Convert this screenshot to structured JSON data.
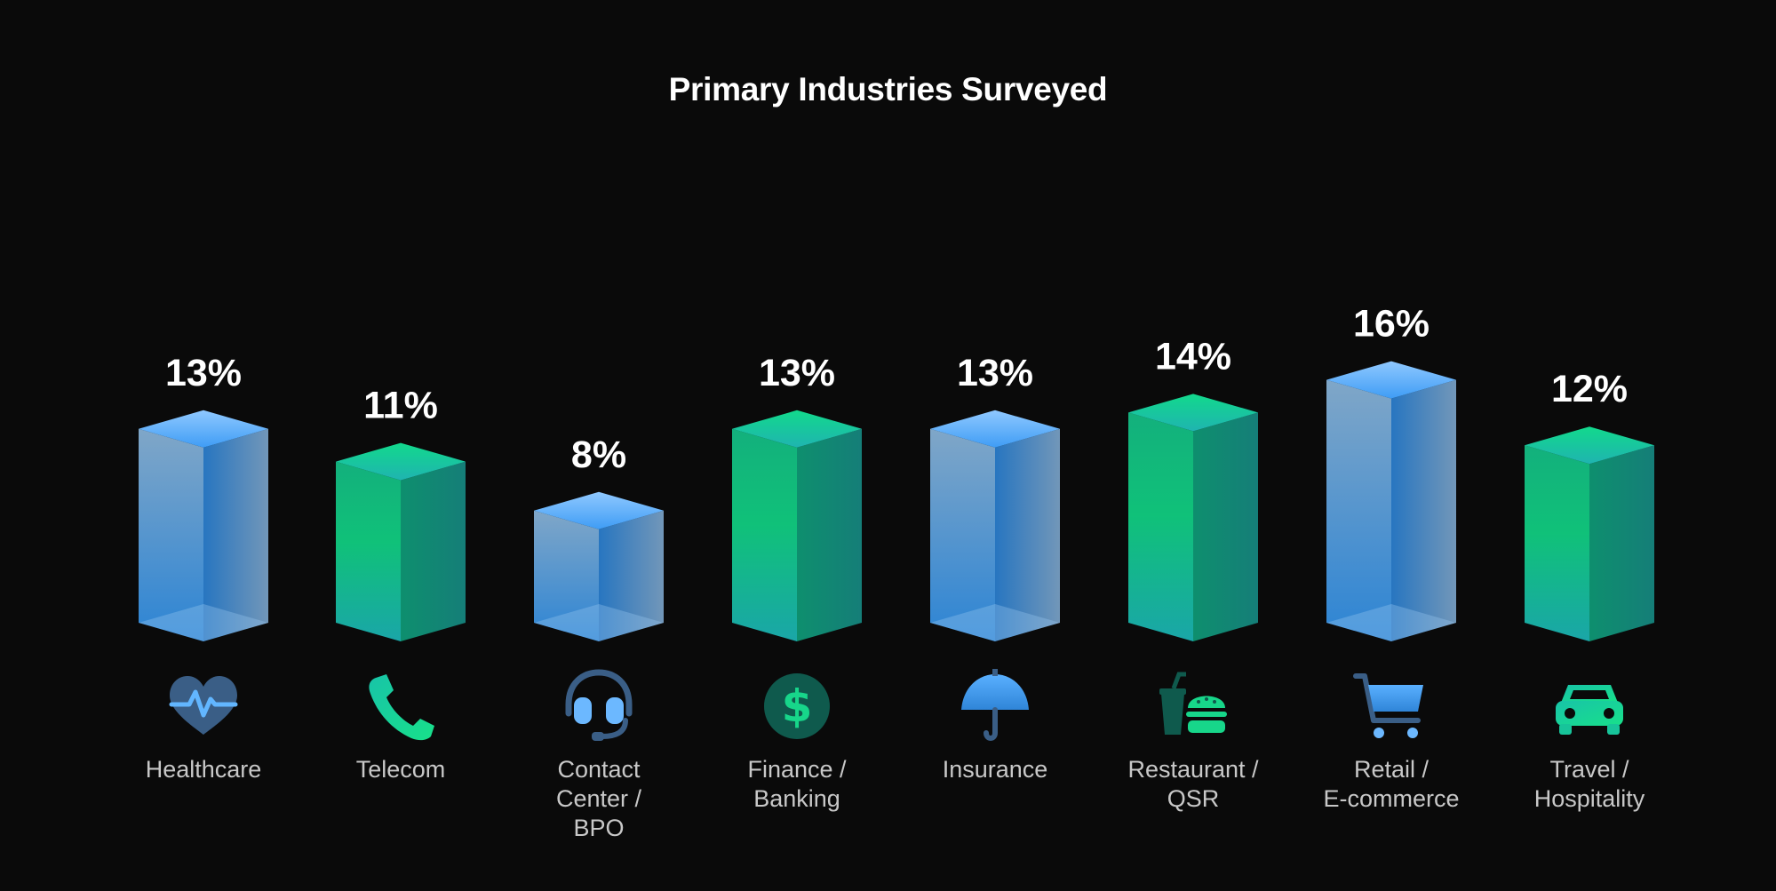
{
  "chart_data": {
    "type": "bar",
    "title": "Primary Industries Surveyed",
    "categories": [
      "Healthcare",
      "Telecom",
      "Contact\nCenter /\nBPO",
      "Finance /\nBanking",
      "Insurance",
      "Restaurant /\nQSR",
      "Retail /\nE-commerce",
      "Travel /\nHospitality"
    ],
    "values": [
      13,
      11,
      8,
      13,
      13,
      14,
      16,
      12
    ],
    "data_labels": [
      "13%",
      "11%",
      "8%",
      "13%",
      "13%",
      "14%",
      "16%",
      "12%"
    ],
    "icons": [
      "heart-pulse-icon",
      "phone-icon",
      "headset-icon",
      "dollar-icon",
      "umbrella-icon",
      "drink-burger-icon",
      "cart-icon",
      "car-icon"
    ],
    "bar_styles": [
      "blue",
      "green",
      "blue",
      "green",
      "blue",
      "green",
      "blue",
      "green"
    ],
    "xlabel": "",
    "ylabel": "",
    "grid": false,
    "legend": "none"
  },
  "colors": {
    "background": "#0a0a0a",
    "blue": "#3d9cf0",
    "green": "#17d68a",
    "text": "#ffffff",
    "label": "#c8c8c8"
  }
}
